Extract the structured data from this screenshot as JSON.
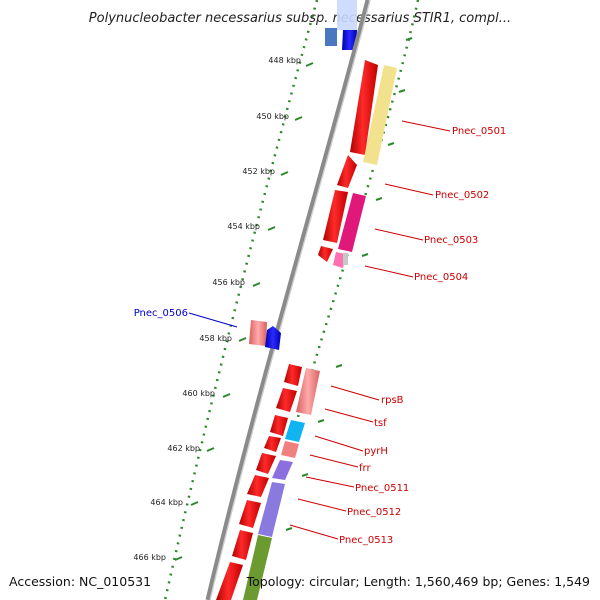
{
  "title": "Polynucleobacter necessarius subsp. necessarius STIR1, compl...",
  "footer": {
    "accession": "Accession: NC_010531",
    "summary": "Topology: circular; Length: 1,560,469 bp; Genes: 1,549"
  },
  "colors": {
    "forward_gene": "#ff0000",
    "reverse_gene": "#ff0000",
    "label_red": "#cc0000",
    "label_blue": "#0000cc",
    "tick_green": "#228b22",
    "backbone": "#888888"
  },
  "ticks": [
    {
      "label": "448 kbp"
    },
    {
      "label": "450 kbp"
    },
    {
      "label": "452 kbp"
    },
    {
      "label": "454 kbp"
    },
    {
      "label": "456 kbp"
    },
    {
      "label": "458 kbp"
    },
    {
      "label": "460 kbp"
    },
    {
      "label": "462 kbp"
    },
    {
      "label": "464 kbp"
    },
    {
      "label": "466 kbp"
    }
  ],
  "gene_labels": [
    {
      "text": "Pnec_0501",
      "color": "#cc0000"
    },
    {
      "text": "Pnec_0502",
      "color": "#cc0000"
    },
    {
      "text": "Pnec_0503",
      "color": "#cc0000"
    },
    {
      "text": "Pnec_0504",
      "color": "#cc0000"
    },
    {
      "text": "Pnec_0506",
      "color": "#0000cc"
    },
    {
      "text": "rpsB",
      "color": "#cc0000"
    },
    {
      "text": "tsf",
      "color": "#cc0000"
    },
    {
      "text": "pyrH",
      "color": "#cc0000"
    },
    {
      "text": "frr",
      "color": "#cc0000"
    },
    {
      "text": "Pnec_0511",
      "color": "#cc0000"
    },
    {
      "text": "Pnec_0512",
      "color": "#cc0000"
    },
    {
      "text": "Pnec_0513",
      "color": "#cc0000"
    }
  ]
}
